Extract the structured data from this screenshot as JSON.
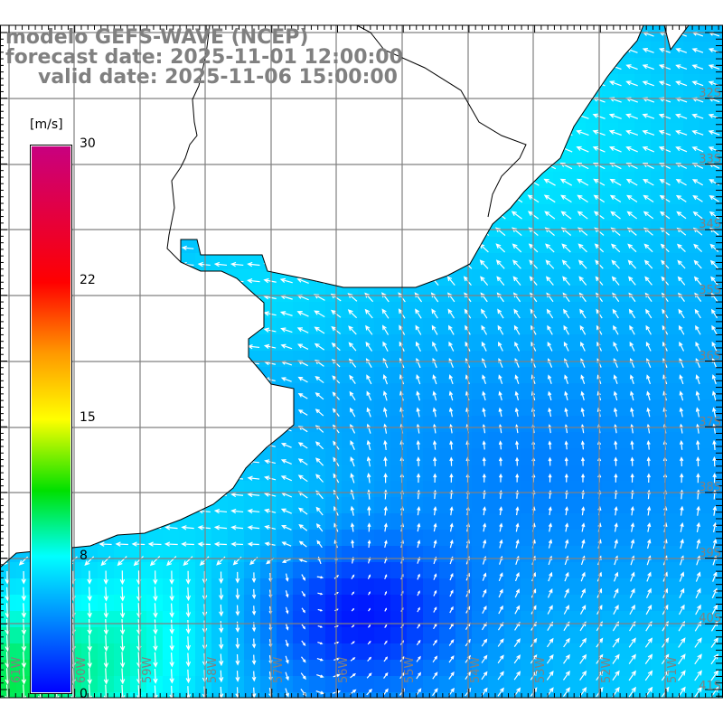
{
  "title": {
    "model": "modelo GEFS-WAVE (NCEP)",
    "forecast": "forecast date: 2025-11-01 12:00:00",
    "valid": "valid date: 2025-11-06 15:00:00"
  },
  "colorbar": {
    "unit": "[m/s]",
    "ticks": [
      "30",
      "22",
      "15",
      "8",
      "0"
    ],
    "colors": [
      "#0000ff",
      "#00ffff",
      "#00e000",
      "#ffff00",
      "#ff9900",
      "#ff0000",
      "#c80080"
    ]
  },
  "axes": {
    "lon_labels": [
      "61W",
      "60W",
      "59W",
      "58W",
      "57W",
      "56W",
      "55W",
      "54W",
      "53W",
      "52W",
      "51W"
    ],
    "lat_labels": [
      "32S",
      "33S",
      "34S",
      "35S",
      "36S",
      "37S",
      "38S",
      "39S",
      "40S",
      "41S"
    ]
  }
}
